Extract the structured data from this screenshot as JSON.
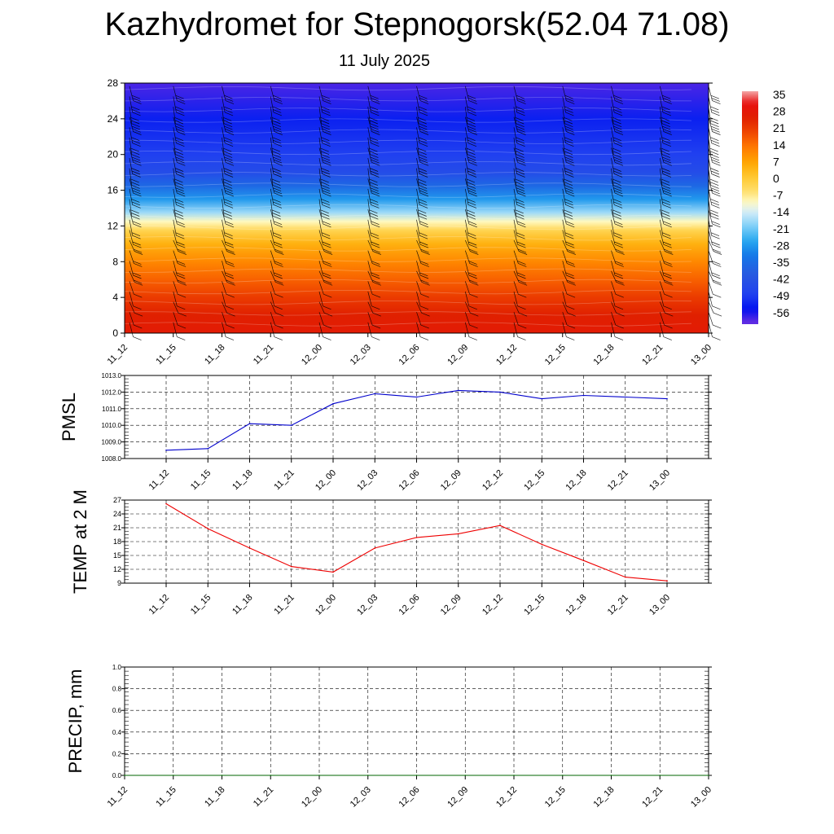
{
  "title": "Kazhydromet for Stepnogorsk(52.04 71.08)",
  "subtitle": "11 July 2025",
  "colors": {
    "pmsl_line": "#0000cc",
    "temp_line": "#ee0000",
    "precip_line": "#006600",
    "grid": "#000000",
    "barbs": "#000000"
  },
  "chart_data": [
    {
      "id": "cross-section",
      "type": "heatmap",
      "title": "",
      "xlabel": "",
      "ylabel": "",
      "x": [
        "11_12",
        "11_15",
        "11_18",
        "11_21",
        "12_00",
        "12_03",
        "12_06",
        "12_09",
        "12_12",
        "12_15",
        "12_18",
        "12_21",
        "13_00"
      ],
      "ylim": [
        0,
        28
      ],
      "yticks": [
        0,
        4,
        8,
        12,
        16,
        20,
        24,
        28
      ],
      "colorbar": {
        "labels": [
          "35",
          "28",
          "21",
          "14",
          "7",
          "0",
          "-7",
          "-14",
          "-21",
          "-28",
          "-35",
          "-42",
          "-49",
          "-56"
        ],
        "placement": "right"
      },
      "temperature_profile": [
        {
          "height": 0,
          "value": 26
        },
        {
          "height": 2,
          "value": 24
        },
        {
          "height": 4,
          "value": 20
        },
        {
          "height": 6,
          "value": 15
        },
        {
          "height": 8,
          "value": 10
        },
        {
          "height": 10,
          "value": 4
        },
        {
          "height": 11.5,
          "value": -3
        },
        {
          "height": 12.5,
          "value": -10
        },
        {
          "height": 13.5,
          "value": -18
        },
        {
          "height": 15,
          "value": -28
        },
        {
          "height": 16.5,
          "value": -36
        },
        {
          "height": 18,
          "value": -44
        },
        {
          "height": 20,
          "value": -48
        },
        {
          "height": 24,
          "value": -52
        },
        {
          "height": 28,
          "value": -58
        }
      ],
      "wind_barbs": "present"
    },
    {
      "id": "pmsl",
      "type": "line",
      "title": "",
      "xlabel": "",
      "ylabel": "PMSL",
      "x": [
        "11_12",
        "11_15",
        "11_18",
        "11_21",
        "12_00",
        "12_03",
        "12_06",
        "12_09",
        "12_12",
        "12_15",
        "12_18",
        "12_21",
        "13_00"
      ],
      "series": [
        {
          "values": [
            1008.5,
            1008.6,
            1010.1,
            1010.0,
            1011.3,
            1011.9,
            1011.7,
            1012.1,
            1012.0,
            1011.6,
            1011.8,
            1011.7,
            1011.6
          ]
        }
      ],
      "ylim": [
        1008.0,
        1013.0
      ],
      "yticks": [
        "1008.0",
        "1009.0",
        "1010.0",
        "1011.0",
        "1012.0",
        "1013.0"
      ],
      "grid": true
    },
    {
      "id": "temp",
      "type": "line",
      "title": "",
      "xlabel": "",
      "ylabel": "TEMP at 2 M",
      "x": [
        "11_12",
        "11_15",
        "11_18",
        "11_21",
        "12_00",
        "12_03",
        "12_06",
        "12_09",
        "12_12",
        "12_15",
        "12_18",
        "12_21",
        "13_00"
      ],
      "series": [
        {
          "values": [
            26.2,
            20.8,
            16.6,
            12.6,
            11.4,
            16.6,
            18.9,
            19.7,
            21.5,
            17.4,
            13.9,
            10.3,
            9.5
          ]
        }
      ],
      "ylim": [
        9,
        27
      ],
      "yticks": [
        "9",
        "12",
        "15",
        "18",
        "21",
        "24",
        "27"
      ],
      "grid": true
    },
    {
      "id": "precip",
      "type": "line",
      "title": "",
      "xlabel": "",
      "ylabel": "PRECIP, mm",
      "x": [
        "11_12",
        "11_15",
        "11_18",
        "11_21",
        "12_00",
        "12_03",
        "12_06",
        "12_09",
        "12_12",
        "12_15",
        "12_18",
        "12_21",
        "13_00"
      ],
      "series": [
        {
          "values": [
            0,
            0,
            0,
            0,
            0,
            0,
            0,
            0,
            0,
            0,
            0,
            0,
            0
          ]
        }
      ],
      "ylim": [
        0.0,
        1.0
      ],
      "yticks": [
        "0.0",
        "0.2",
        "0.4",
        "0.6",
        "0.8",
        "1.0"
      ],
      "grid": true
    }
  ]
}
